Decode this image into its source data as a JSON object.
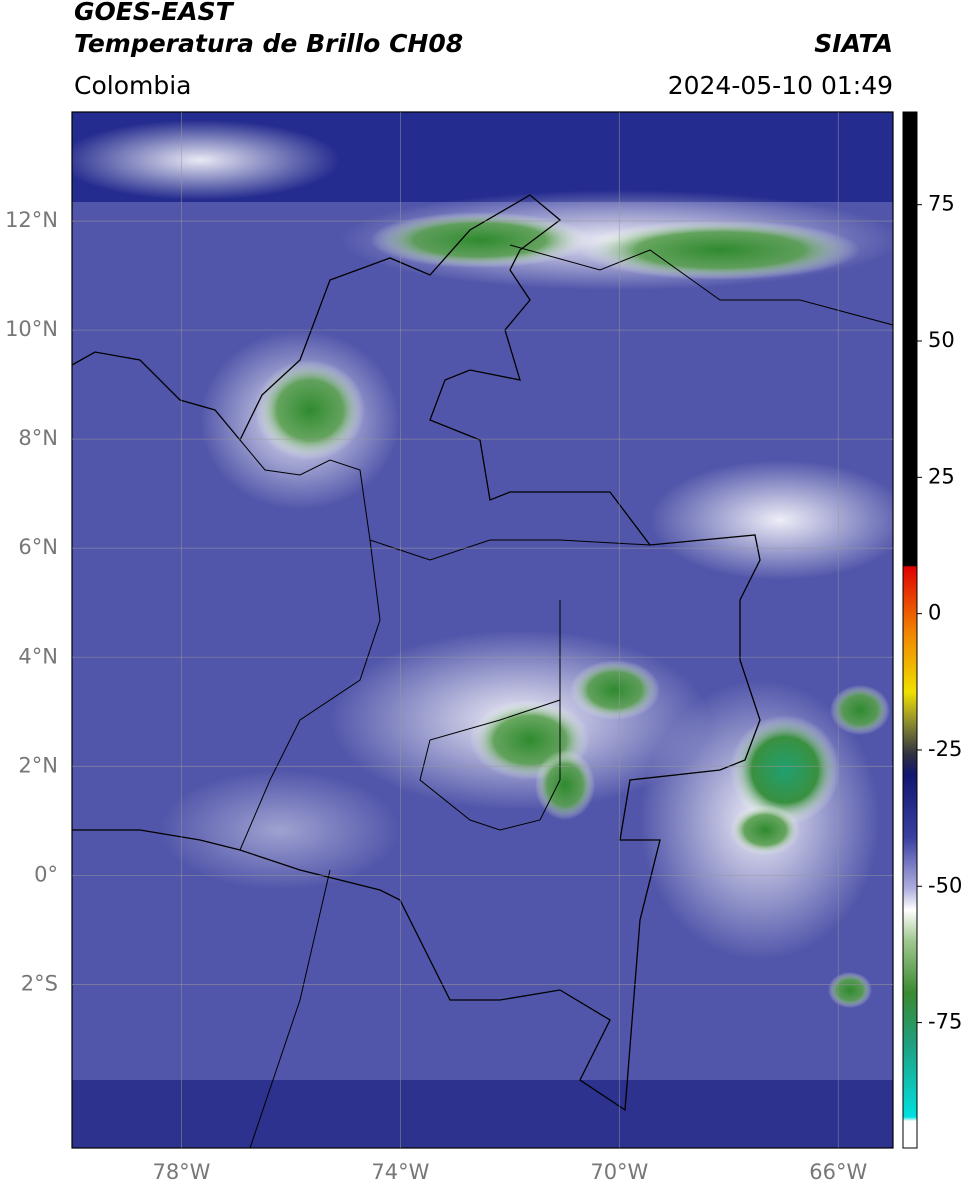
{
  "header": {
    "title": "GOES-EAST",
    "subtitle": "Temperatura de Brillo CH08",
    "source": "SIATA",
    "region": "Colombia",
    "datetime": "2024-05-10 01:49"
  },
  "map": {
    "xlim": [
      -80,
      -65
    ],
    "ylim": [
      -5,
      14
    ],
    "lat_ticks": [
      {
        "value": 12,
        "label": "12°N"
      },
      {
        "value": 10,
        "label": "10°N"
      },
      {
        "value": 8,
        "label": "8°N"
      },
      {
        "value": 6,
        "label": "6°N"
      },
      {
        "value": 4,
        "label": "4°N"
      },
      {
        "value": 2,
        "label": "2°N"
      },
      {
        "value": 0,
        "label": "0°"
      },
      {
        "value": -2,
        "label": "2°S"
      }
    ],
    "lon_ticks": [
      {
        "value": -78,
        "label": "78°W"
      },
      {
        "value": -74,
        "label": "74°W"
      },
      {
        "value": -70,
        "label": "70°W"
      },
      {
        "value": -66,
        "label": "66°W"
      }
    ]
  },
  "colorbar": {
    "lim": [
      -98,
      92
    ],
    "ticks": [
      75,
      50,
      25,
      0,
      -25,
      -50,
      -75
    ]
  }
}
